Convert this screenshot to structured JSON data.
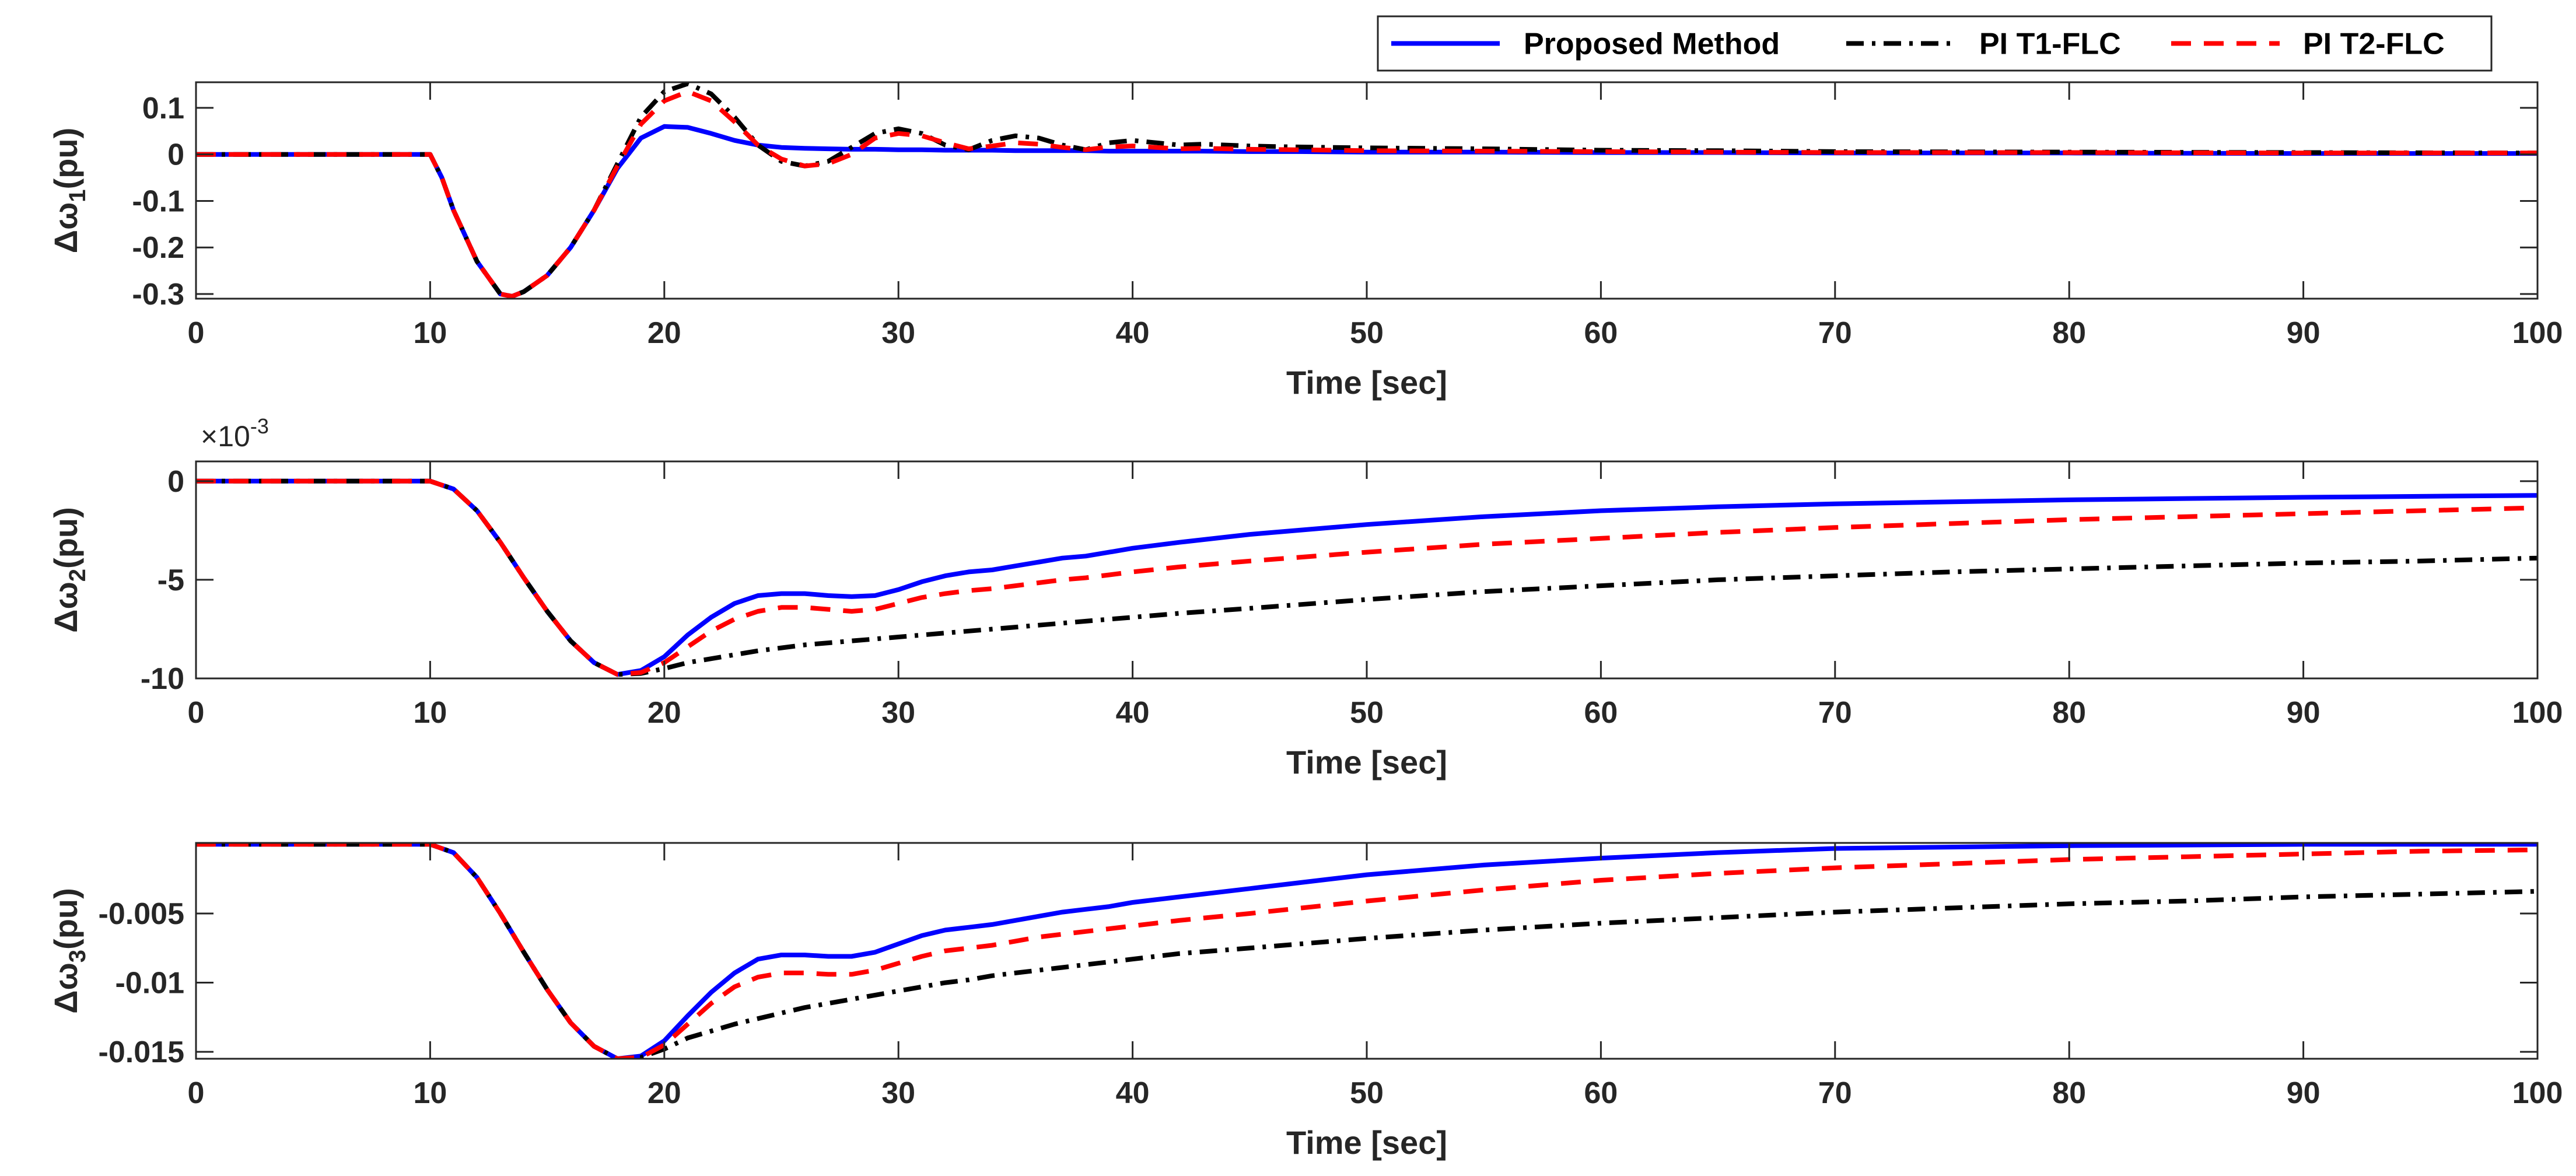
{
  "chart_data": [
    {
      "type": "line",
      "title": "",
      "xlabel": "Time [sec]",
      "ylabel": "Δω1(pu)",
      "ylabel_symbol": "Δω",
      "ylabel_sub": "1",
      "ylabel_unit": "(pu)",
      "xlim": [
        0,
        100
      ],
      "ylim": [
        -0.31,
        0.155
      ],
      "xticks": [
        "0",
        "10",
        "20",
        "30",
        "40",
        "50",
        "60",
        "70",
        "80",
        "90",
        "100"
      ],
      "yticks": [
        {
          "label": "0.1",
          "value": 0.1
        },
        {
          "label": "0",
          "value": 0
        },
        {
          "label": "-0.1",
          "value": -0.1
        },
        {
          "label": "-0.2",
          "value": -0.2
        },
        {
          "label": "-0.3",
          "value": -0.3
        }
      ],
      "x": [
        0,
        10,
        10.5,
        11,
        12,
        13,
        13.5,
        14,
        15,
        16,
        17,
        18,
        19,
        20,
        21,
        22,
        23,
        24,
        25,
        26,
        27,
        28,
        29,
        30,
        31,
        32,
        33,
        34,
        35,
        36,
        37,
        38,
        39,
        40,
        41,
        42,
        43,
        45,
        47,
        50,
        55,
        60,
        65,
        70,
        80,
        90,
        100
      ],
      "series": [
        {
          "name": "Proposed Method",
          "color": "#0000ff",
          "dash": "solid",
          "values": [
            0,
            0,
            -0.05,
            -0.12,
            -0.23,
            -0.3,
            -0.305,
            -0.295,
            -0.26,
            -0.2,
            -0.12,
            -0.03,
            0.035,
            0.06,
            0.058,
            0.045,
            0.03,
            0.02,
            0.015,
            0.013,
            0.012,
            0.011,
            0.011,
            0.01,
            0.01,
            0.009,
            0.009,
            0.009,
            0.008,
            0.008,
            0.008,
            0.008,
            0.007,
            0.007,
            0.007,
            0.007,
            0.007,
            0.006,
            0.006,
            0.005,
            0.005,
            0.004,
            0.004,
            0.003,
            0.003,
            0.002,
            0.002
          ]
        },
        {
          "name": "PI T1-FLC",
          "color": "#000000",
          "dash": "dashdot",
          "values": [
            0,
            0,
            -0.05,
            -0.12,
            -0.23,
            -0.3,
            -0.305,
            -0.295,
            -0.26,
            -0.2,
            -0.12,
            -0.02,
            0.08,
            0.135,
            0.152,
            0.13,
            0.08,
            0.02,
            -0.015,
            -0.025,
            -0.015,
            0.015,
            0.045,
            0.055,
            0.045,
            0.02,
            0.01,
            0.03,
            0.04,
            0.035,
            0.02,
            0.01,
            0.025,
            0.03,
            0.025,
            0.02,
            0.022,
            0.018,
            0.016,
            0.014,
            0.012,
            0.009,
            0.008,
            0.006,
            0.005,
            0.004,
            0.003
          ]
        },
        {
          "name": "PI T2-FLC",
          "color": "#ff0000",
          "dash": "dashed",
          "values": [
            0,
            0,
            -0.05,
            -0.12,
            -0.23,
            -0.3,
            -0.305,
            -0.295,
            -0.26,
            -0.2,
            -0.12,
            -0.025,
            0.065,
            0.115,
            0.135,
            0.115,
            0.07,
            0.02,
            -0.01,
            -0.025,
            -0.02,
            0.0,
            0.035,
            0.045,
            0.04,
            0.025,
            0.012,
            0.018,
            0.025,
            0.022,
            0.015,
            0.01,
            0.016,
            0.018,
            0.015,
            0.012,
            0.013,
            0.011,
            0.01,
            0.008,
            0.007,
            0.006,
            0.005,
            0.004,
            0.004,
            0.003,
            0.003
          ]
        }
      ],
      "legend": "top-right"
    },
    {
      "type": "line",
      "title": "",
      "xlabel": "Time [sec]",
      "ylabel": "Δω2(pu)",
      "ylabel_symbol": "Δω",
      "ylabel_sub": "2",
      "ylabel_unit": "(pu)",
      "exponent_text": "×10",
      "exponent_power": "-3",
      "xlim": [
        0,
        100
      ],
      "ylim": [
        -10,
        1
      ],
      "xticks": [
        "0",
        "10",
        "20",
        "30",
        "40",
        "50",
        "60",
        "70",
        "80",
        "90",
        "100"
      ],
      "yticks": [
        {
          "label": "0",
          "value": 0
        },
        {
          "label": "-5",
          "value": -5
        },
        {
          "label": "-10",
          "value": -10
        }
      ],
      "x": [
        0,
        10,
        11,
        12,
        13,
        14,
        15,
        16,
        17,
        18,
        19,
        20,
        21,
        22,
        23,
        24,
        25,
        26,
        27,
        28,
        29,
        30,
        31,
        32,
        33,
        34,
        35,
        36,
        37,
        38,
        39,
        40,
        42,
        45,
        50,
        55,
        60,
        65,
        70,
        75,
        80,
        85,
        90,
        95,
        100
      ],
      "series": [
        {
          "name": "Proposed Method",
          "color": "#0000ff",
          "dash": "solid",
          "values": [
            0,
            0,
            -0.4,
            -1.5,
            -3.1,
            -4.9,
            -6.6,
            -8.1,
            -9.2,
            -9.8,
            -9.6,
            -8.9,
            -7.8,
            -6.9,
            -6.2,
            -5.8,
            -5.7,
            -5.7,
            -5.8,
            -5.85,
            -5.8,
            -5.5,
            -5.1,
            -4.8,
            -4.6,
            -4.5,
            -4.3,
            -4.1,
            -3.9,
            -3.8,
            -3.6,
            -3.4,
            -3.1,
            -2.7,
            -2.2,
            -1.8,
            -1.5,
            -1.3,
            -1.15,
            -1.05,
            -0.95,
            -0.88,
            -0.82,
            -0.77,
            -0.72
          ]
        },
        {
          "name": "PI T1-FLC",
          "color": "#000000",
          "dash": "dashdot",
          "values": [
            0,
            0,
            -0.4,
            -1.5,
            -3.1,
            -4.9,
            -6.6,
            -8.1,
            -9.2,
            -9.8,
            -9.75,
            -9.5,
            -9.2,
            -9.0,
            -8.8,
            -8.6,
            -8.45,
            -8.3,
            -8.2,
            -8.1,
            -8.0,
            -7.9,
            -7.8,
            -7.7,
            -7.6,
            -7.5,
            -7.4,
            -7.3,
            -7.2,
            -7.1,
            -7.0,
            -6.9,
            -6.7,
            -6.45,
            -6.0,
            -5.6,
            -5.3,
            -5.0,
            -4.8,
            -4.6,
            -4.45,
            -4.3,
            -4.15,
            -4.05,
            -3.9
          ]
        },
        {
          "name": "PI T2-FLC",
          "color": "#ff0000",
          "dash": "dashed",
          "values": [
            0,
            0,
            -0.4,
            -1.5,
            -3.1,
            -4.9,
            -6.6,
            -8.1,
            -9.2,
            -9.8,
            -9.7,
            -9.2,
            -8.4,
            -7.6,
            -7.0,
            -6.6,
            -6.4,
            -6.4,
            -6.5,
            -6.6,
            -6.5,
            -6.2,
            -5.9,
            -5.7,
            -5.55,
            -5.45,
            -5.3,
            -5.15,
            -5.0,
            -4.9,
            -4.75,
            -4.6,
            -4.35,
            -4.05,
            -3.6,
            -3.2,
            -2.9,
            -2.6,
            -2.35,
            -2.15,
            -1.95,
            -1.8,
            -1.65,
            -1.5,
            -1.35
          ]
        }
      ],
      "legend": "top-right"
    },
    {
      "type": "line",
      "title": "",
      "xlabel": "Time [sec]",
      "ylabel": "Δω3(pu)",
      "ylabel_symbol": "Δω",
      "ylabel_sub": "3",
      "ylabel_unit": "(pu)",
      "xlim": [
        0,
        100
      ],
      "ylim": [
        -0.0155,
        0.0001
      ],
      "xticks": [
        "0",
        "10",
        "20",
        "30",
        "40",
        "50",
        "60",
        "70",
        "80",
        "90",
        "100"
      ],
      "yticks": [
        {
          "label": "-0.005",
          "value": -0.005
        },
        {
          "label": "-0.01",
          "value": -0.01
        },
        {
          "label": "-0.015",
          "value": -0.015
        }
      ],
      "x": [
        0,
        10,
        11,
        12,
        13,
        14,
        15,
        16,
        17,
        18,
        19,
        20,
        21,
        22,
        23,
        24,
        25,
        26,
        27,
        28,
        29,
        30,
        31,
        32,
        33,
        34,
        35,
        36,
        37,
        38,
        39,
        40,
        42,
        45,
        50,
        55,
        60,
        65,
        70,
        75,
        80,
        85,
        90,
        95,
        100
      ],
      "series": [
        {
          "name": "Proposed Method",
          "color": "#0000ff",
          "dash": "solid",
          "values": [
            0,
            0,
            -0.0006,
            -0.0024,
            -0.005,
            -0.0078,
            -0.0105,
            -0.0129,
            -0.0146,
            -0.0155,
            -0.0153,
            -0.0142,
            -0.0124,
            -0.0107,
            -0.0093,
            -0.0083,
            -0.008,
            -0.008,
            -0.0081,
            -0.0081,
            -0.0078,
            -0.0072,
            -0.0066,
            -0.0062,
            -0.006,
            -0.0058,
            -0.0055,
            -0.0052,
            -0.0049,
            -0.0047,
            -0.0045,
            -0.0042,
            -0.0038,
            -0.0032,
            -0.0022,
            -0.0015,
            -0.001,
            -0.0006,
            -0.0003,
            -0.0002,
            -0.0001,
            -5e-05,
            0,
            0,
            0
          ]
        },
        {
          "name": "PI T1-FLC",
          "color": "#000000",
          "dash": "dashdot",
          "values": [
            0,
            0,
            -0.0006,
            -0.0024,
            -0.005,
            -0.0078,
            -0.0105,
            -0.0129,
            -0.0146,
            -0.0155,
            -0.0154,
            -0.0148,
            -0.014,
            -0.0135,
            -0.013,
            -0.0126,
            -0.0122,
            -0.0118,
            -0.0115,
            -0.0112,
            -0.0109,
            -0.0106,
            -0.0103,
            -0.01,
            -0.0098,
            -0.0095,
            -0.0093,
            -0.0091,
            -0.0089,
            -0.0087,
            -0.0085,
            -0.0083,
            -0.0079,
            -0.0075,
            -0.0068,
            -0.0062,
            -0.0057,
            -0.0053,
            -0.0049,
            -0.0046,
            -0.0043,
            -0.0041,
            -0.0038,
            -0.0036,
            -0.0034
          ]
        },
        {
          "name": "PI T2-FLC",
          "color": "#ff0000",
          "dash": "dashed",
          "values": [
            0,
            0,
            -0.0006,
            -0.0024,
            -0.005,
            -0.0078,
            -0.0105,
            -0.0129,
            -0.0146,
            -0.0155,
            -0.0154,
            -0.0145,
            -0.013,
            -0.0115,
            -0.0103,
            -0.0096,
            -0.0093,
            -0.0093,
            -0.0094,
            -0.0094,
            -0.0091,
            -0.0086,
            -0.0081,
            -0.0077,
            -0.0075,
            -0.0073,
            -0.007,
            -0.0067,
            -0.0065,
            -0.0063,
            -0.0061,
            -0.0059,
            -0.0055,
            -0.005,
            -0.0041,
            -0.0033,
            -0.0026,
            -0.0021,
            -0.0017,
            -0.0014,
            -0.0011,
            -0.0009,
            -0.0007,
            -0.0005,
            -0.0004
          ]
        }
      ],
      "legend": "top-right"
    }
  ]
}
